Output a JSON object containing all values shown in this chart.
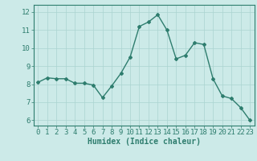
{
  "x": [
    0,
    1,
    2,
    3,
    4,
    5,
    6,
    7,
    8,
    9,
    10,
    11,
    12,
    13,
    14,
    15,
    16,
    17,
    18,
    19,
    20,
    21,
    22,
    23
  ],
  "y": [
    8.1,
    8.35,
    8.3,
    8.3,
    8.05,
    8.05,
    7.95,
    7.25,
    7.9,
    8.6,
    9.5,
    11.2,
    11.45,
    11.85,
    11.0,
    9.4,
    9.6,
    10.3,
    10.2,
    8.3,
    7.35,
    7.2,
    6.7,
    6.0
  ],
  "line_color": "#2e7d6e",
  "bg_color": "#cceae8",
  "grid_color": "#aad4d0",
  "xlabel": "Humidex (Indice chaleur)",
  "ylabel_ticks": [
    6,
    7,
    8,
    9,
    10,
    11,
    12
  ],
  "xlim": [
    -0.5,
    23.5
  ],
  "ylim": [
    5.7,
    12.4
  ],
  "tick_color": "#2e7d6e",
  "label_color": "#2e7d6e",
  "xlabel_fontsize": 7,
  "tick_fontsize": 6.5,
  "linewidth": 1.0,
  "markersize": 2.0
}
